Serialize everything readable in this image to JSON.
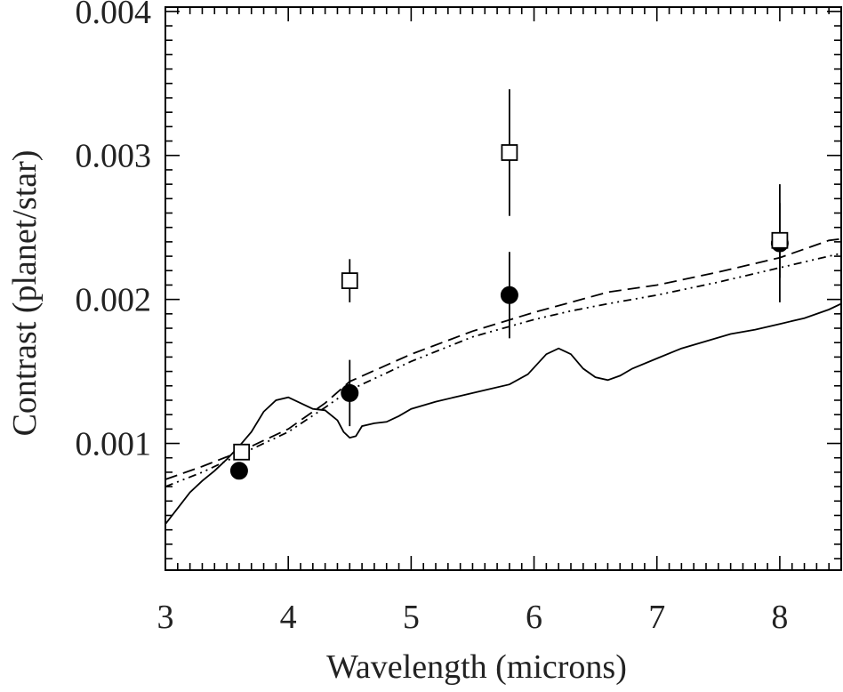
{
  "chart_data": {
    "type": "scatter",
    "xlabel": "Wavelength (microns)",
    "ylabel": "Contrast (planet/star)",
    "xlim": [
      3,
      8.5
    ],
    "ylim": [
      0.00012,
      0.00403
    ],
    "x_major_ticks": [
      3,
      4,
      5,
      6,
      7,
      8
    ],
    "x_tick_labels": [
      "3",
      "4",
      "5",
      "6",
      "7",
      "8"
    ],
    "y_major_ticks": [
      0.001,
      0.002,
      0.003,
      0.004
    ],
    "y_tick_labels": [
      "0.001",
      "0.002",
      "0.003",
      "0.004"
    ],
    "legend": "none",
    "grid": false,
    "series": [
      {
        "marker": "filled-circle",
        "x": [
          3.6,
          4.5,
          5.8,
          8.0
        ],
        "y": [
          0.00081,
          0.00135,
          0.00203,
          0.00239
        ],
        "yerr": [
          6e-05,
          0.00023,
          0.0003,
          0.00041
        ]
      },
      {
        "marker": "open-square",
        "x": [
          3.62,
          4.5,
          5.8,
          8.0
        ],
        "y": [
          0.00094,
          0.00213,
          0.00302,
          0.00241
        ],
        "yerr": [
          5e-05,
          0.00015,
          0.00044,
          0.00026
        ]
      },
      {
        "style": "solid",
        "x": [
          3.0,
          3.1,
          3.2,
          3.3,
          3.4,
          3.5,
          3.6,
          3.7,
          3.8,
          3.9,
          4.0,
          4.1,
          4.2,
          4.3,
          4.4,
          4.45,
          4.5,
          4.55,
          4.6,
          4.7,
          4.8,
          4.9,
          5.0,
          5.2,
          5.4,
          5.6,
          5.8,
          5.95,
          6.1,
          6.2,
          6.3,
          6.4,
          6.5,
          6.6,
          6.7,
          6.8,
          7.0,
          7.2,
          7.4,
          7.6,
          7.8,
          8.0,
          8.2,
          8.4,
          8.5
        ],
        "y": [
          0.00044,
          0.00055,
          0.00066,
          0.00074,
          0.00081,
          0.00089,
          0.00098,
          0.00108,
          0.00122,
          0.0013,
          0.00132,
          0.00128,
          0.00124,
          0.00123,
          0.00116,
          0.00108,
          0.00104,
          0.00105,
          0.00112,
          0.00114,
          0.00115,
          0.00119,
          0.00124,
          0.00129,
          0.00133,
          0.00137,
          0.00141,
          0.00148,
          0.00162,
          0.00166,
          0.00162,
          0.00152,
          0.00146,
          0.00144,
          0.00147,
          0.00152,
          0.00159,
          0.00166,
          0.00171,
          0.00176,
          0.00179,
          0.00183,
          0.00187,
          0.00193,
          0.00197
        ]
      },
      {
        "style": "dashed",
        "x": [
          3.0,
          3.3,
          3.6,
          4.0,
          4.3,
          4.5,
          5.0,
          5.5,
          6.0,
          6.3,
          6.6,
          7.0,
          7.5,
          8.0,
          8.4,
          8.5
        ],
        "y": [
          0.00075,
          0.00084,
          0.00094,
          0.0011,
          0.00128,
          0.00143,
          0.00162,
          0.00178,
          0.00191,
          0.00198,
          0.00205,
          0.0021,
          0.00219,
          0.00229,
          0.00241,
          0.00242
        ]
      },
      {
        "style": "dash-dot-dot",
        "x": [
          3.0,
          3.3,
          3.6,
          4.0,
          4.3,
          4.5,
          5.0,
          5.5,
          6.0,
          6.3,
          6.6,
          7.0,
          7.5,
          8.0,
          8.5
        ],
        "y": [
          0.0007,
          0.0008,
          0.00092,
          0.00108,
          0.00125,
          0.00137,
          0.00157,
          0.00174,
          0.00186,
          0.00192,
          0.00197,
          0.00203,
          0.00212,
          0.00222,
          0.00232
        ]
      }
    ]
  }
}
